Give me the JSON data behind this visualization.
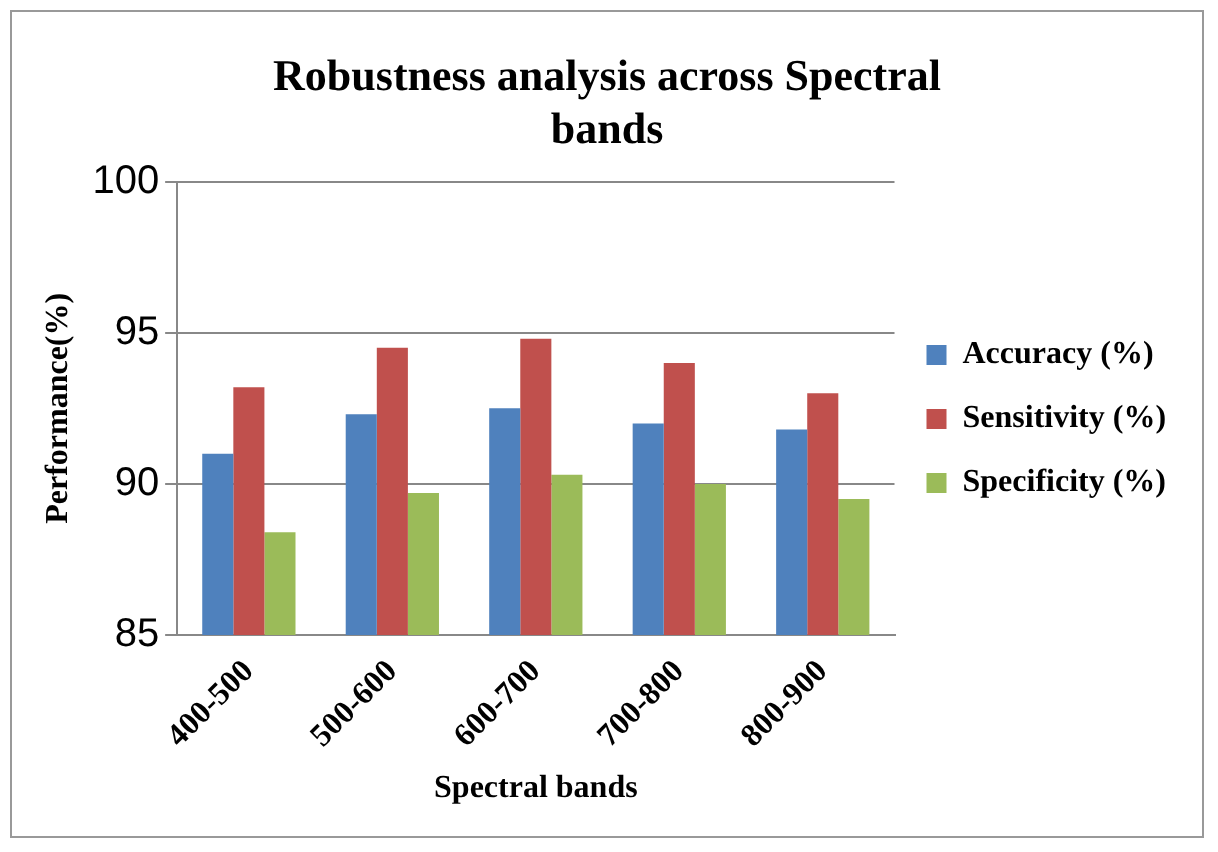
{
  "chart_data": {
    "type": "bar",
    "title": "Robustness analysis across Spectral bands",
    "xlabel": "Spectral bands",
    "ylabel": "Performance(%)",
    "categories": [
      "400-500",
      "500-600",
      "600-700",
      "700-800",
      "800-900"
    ],
    "series": [
      {
        "name": "Accuracy (%)",
        "color": "#4f81bd",
        "values": [
          91.0,
          92.3,
          92.5,
          92.0,
          91.8
        ]
      },
      {
        "name": "Sensitivity (%)",
        "color": "#c0504d",
        "values": [
          93.2,
          94.5,
          94.8,
          94.0,
          93.0
        ]
      },
      {
        "name": "Specificity (%)",
        "color": "#9bbb59",
        "values": [
          88.4,
          89.7,
          90.3,
          90.0,
          89.5
        ]
      }
    ],
    "ylim": [
      85,
      100
    ],
    "yticks": [
      85,
      90,
      95,
      100
    ],
    "grid": "y",
    "legend": "right"
  }
}
